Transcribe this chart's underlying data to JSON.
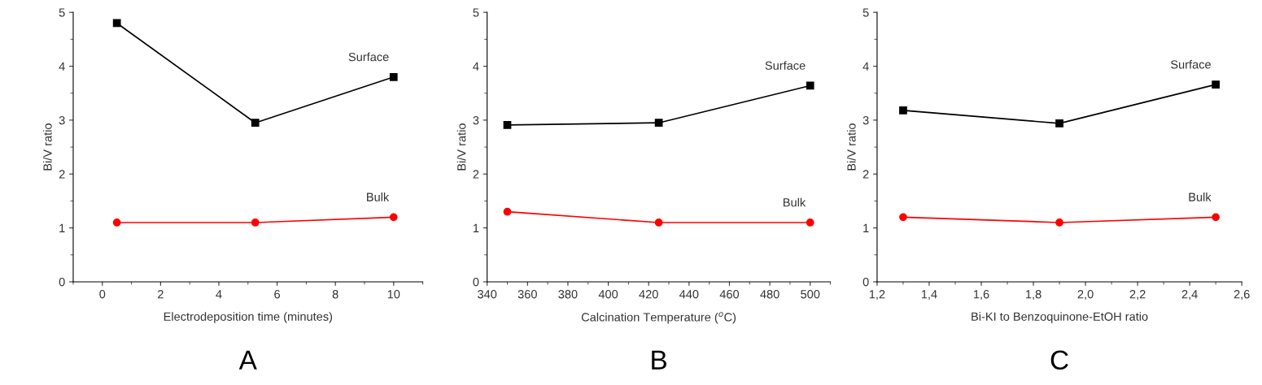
{
  "chart_data": [
    {
      "type": "line",
      "title": "A",
      "xlabel": "Electrodeposition time (minutes)",
      "ylabel": "Bi/V ratio",
      "x": [
        0.5,
        5.25,
        10
      ],
      "xlim": [
        -1,
        11
      ],
      "xticks": [
        0,
        2,
        4,
        6,
        8,
        10
      ],
      "ylim": [
        0,
        5
      ],
      "yticks": [
        0,
        1,
        2,
        3,
        4,
        5
      ],
      "grid": false,
      "legend": false,
      "line_style": "solid",
      "series": [
        {
          "name": "Surface",
          "color": "#000000",
          "marker": "square",
          "values": [
            4.8,
            2.95,
            3.8
          ]
        },
        {
          "name": "Bulk",
          "color": "#ff0000",
          "marker": "circle",
          "values": [
            1.1,
            1.1,
            1.2
          ]
        }
      ]
    },
    {
      "type": "line",
      "title": "B",
      "xlabel": "Calcination Temperature ($^{o}$C)",
      "ylabel": "Bi/V ratio",
      "x": [
        350,
        425,
        500
      ],
      "xlim": [
        340,
        510
      ],
      "xticks": [
        340,
        360,
        380,
        400,
        420,
        440,
        460,
        480,
        500
      ],
      "ylim": [
        0,
        5
      ],
      "yticks": [
        0,
        1,
        2,
        3,
        4,
        5
      ],
      "grid": false,
      "legend": false,
      "line_style": "solid",
      "series": [
        {
          "name": "Surface",
          "color": "#000000",
          "marker": "square",
          "values": [
            2.91,
            2.95,
            3.64
          ]
        },
        {
          "name": "Bulk",
          "color": "#ff0000",
          "marker": "circle",
          "values": [
            1.3,
            1.1,
            1.1
          ]
        }
      ]
    },
    {
      "type": "line",
      "title": "C",
      "xlabel": "Bi-KI to Benzoquinone-EtOH ratio",
      "ylabel": "Bi/V ratio",
      "x": [
        1.3,
        1.9,
        2.5
      ],
      "xlim": [
        1.2,
        2.6
      ],
      "xticks": [
        {
          "value": 1.2,
          "label": "1,2"
        },
        {
          "value": 1.4,
          "label": "1,4"
        },
        {
          "value": 1.6,
          "label": "1,6"
        },
        {
          "value": 1.8,
          "label": "1,8"
        },
        {
          "value": 2.0,
          "label": "2,0"
        },
        {
          "value": 2.2,
          "label": "2,2"
        },
        {
          "value": 2.4,
          "label": "2,4"
        },
        {
          "value": 2.6,
          "label": "2,6"
        }
      ],
      "ylim": [
        0,
        5
      ],
      "yticks": [
        0,
        1,
        2,
        3,
        4,
        5
      ],
      "grid": false,
      "legend": false,
      "line_style": "solid",
      "series": [
        {
          "name": "Surface",
          "color": "#000000",
          "marker": "square",
          "values": [
            3.18,
            2.94,
            3.66
          ]
        },
        {
          "name": "Bulk",
          "color": "#ff0000",
          "marker": "circle",
          "values": [
            1.2,
            1.1,
            1.2
          ]
        }
      ]
    }
  ]
}
